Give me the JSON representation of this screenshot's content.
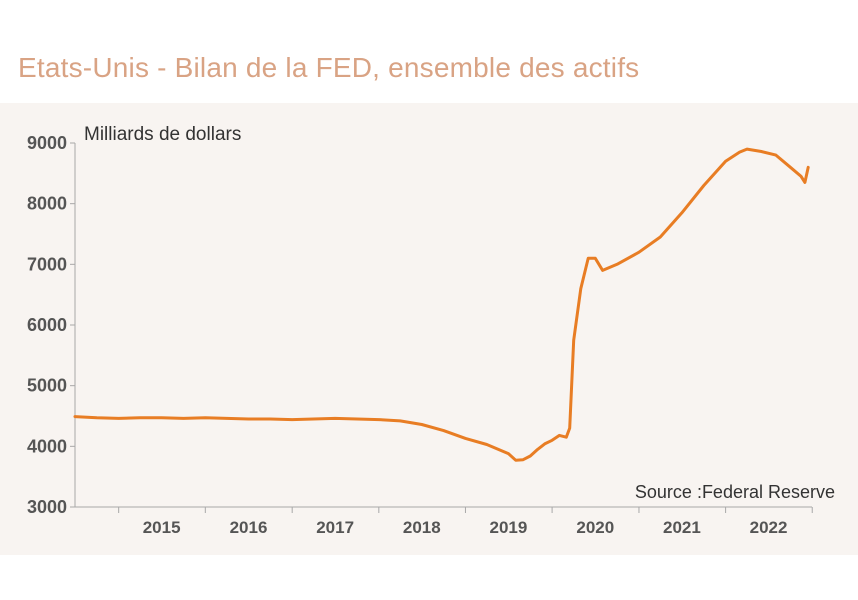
{
  "title": "Etats-Unis - Bilan de la FED, ensemble des actifs",
  "unit_label": "Milliards de dollars",
  "source": "Source :Federal Reserve",
  "colors": {
    "line": "#e87d24",
    "title": "#d9a384",
    "panel": "#f8f4f1",
    "axis": "#a8a8a8"
  },
  "chart_data": {
    "type": "line",
    "title": "Etats-Unis - Bilan de la FED, ensemble des actifs",
    "ylabel": "Milliards de dollars",
    "ylim": [
      3000,
      9000
    ],
    "xlim": [
      "2014-07-01",
      "2022-12-31"
    ],
    "x_tick_labels": [
      "2015",
      "2016",
      "2017",
      "2018",
      "2019",
      "2020",
      "2021",
      "2022"
    ],
    "y_tick_labels": [
      "9000",
      "8000",
      "7000",
      "6000",
      "5000",
      "4000",
      "3000"
    ],
    "grid": false,
    "series": [
      {
        "x": [
          "2014-07-01",
          "2014-10-01",
          "2015-01-01",
          "2015-04-01",
          "2015-07-01",
          "2015-10-01",
          "2016-01-01",
          "2016-04-01",
          "2016-07-01",
          "2016-10-01",
          "2017-01-01",
          "2017-04-01",
          "2017-07-01",
          "2017-10-01",
          "2018-01-01",
          "2018-04-01",
          "2018-07-01",
          "2018-10-01",
          "2019-01-01",
          "2019-04-01",
          "2019-07-01",
          "2019-08-01",
          "2019-09-01",
          "2019-10-01",
          "2019-11-01",
          "2019-12-01",
          "2020-01-01",
          "2020-02-01",
          "2020-03-01",
          "2020-03-15",
          "2020-04-01",
          "2020-05-01",
          "2020-06-01",
          "2020-07-01",
          "2020-08-01",
          "2020-10-01",
          "2021-01-01",
          "2021-04-01",
          "2021-07-01",
          "2021-10-01",
          "2022-01-01",
          "2022-03-01",
          "2022-04-01",
          "2022-06-01",
          "2022-08-01",
          "2022-10-01",
          "2022-11-15",
          "2022-12-01",
          "2022-12-15"
        ],
        "values": [
          4490,
          4470,
          4460,
          4470,
          4470,
          4460,
          4470,
          4460,
          4450,
          4450,
          4440,
          4450,
          4460,
          4450,
          4440,
          4420,
          4360,
          4260,
          4130,
          4030,
          3880,
          3770,
          3780,
          3840,
          3950,
          4040,
          4100,
          4180,
          4150,
          4300,
          5750,
          6600,
          7100,
          7100,
          6900,
          7000,
          7200,
          7450,
          7850,
          8300,
          8700,
          8850,
          8900,
          8860,
          8800,
          8600,
          8450,
          8350,
          8600
        ]
      }
    ]
  }
}
